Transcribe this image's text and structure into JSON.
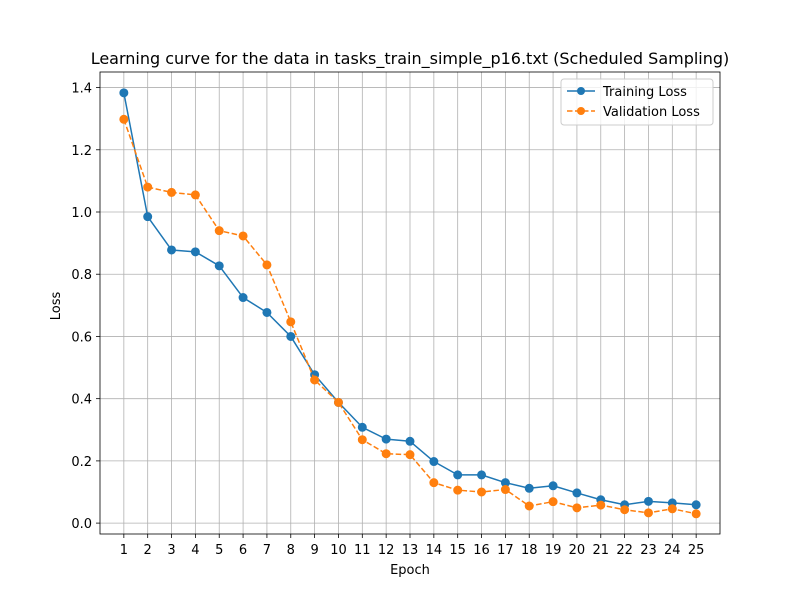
{
  "chart_data": {
    "type": "line",
    "title": "Learning curve for the data in tasks_train_simple_p16.txt (Scheduled Sampling)",
    "xlabel": "Epoch",
    "ylabel": "Loss",
    "x": [
      1,
      2,
      3,
      4,
      5,
      6,
      7,
      8,
      9,
      10,
      11,
      12,
      13,
      14,
      15,
      16,
      17,
      18,
      19,
      20,
      21,
      22,
      23,
      24,
      25
    ],
    "xlim": [
      0.0,
      26.0
    ],
    "ylim": [
      -0.035,
      1.45
    ],
    "yticks": [
      0.0,
      0.2,
      0.4,
      0.6,
      0.8,
      1.0,
      1.2,
      1.4
    ],
    "ytick_labels": [
      "0.0",
      "0.2",
      "0.4",
      "0.6",
      "0.8",
      "1.0",
      "1.2",
      "1.4"
    ],
    "grid": true,
    "legend_position": "top-right",
    "series": [
      {
        "name": "Training Loss",
        "color": "#1f77b4",
        "line_style": "solid",
        "marker": "circle",
        "values": [
          1.383,
          0.985,
          0.878,
          0.872,
          0.827,
          0.725,
          0.677,
          0.6,
          0.477,
          0.388,
          0.308,
          0.27,
          0.263,
          0.198,
          0.155,
          0.155,
          0.13,
          0.112,
          0.12,
          0.097,
          0.075,
          0.059,
          0.07,
          0.065,
          0.059
        ]
      },
      {
        "name": "Validation Loss",
        "color": "#ff7f0e",
        "line_style": "dashed",
        "marker": "circle",
        "values": [
          1.298,
          1.08,
          1.063,
          1.055,
          0.94,
          0.923,
          0.83,
          0.647,
          0.46,
          0.388,
          0.268,
          0.223,
          0.22,
          0.13,
          0.106,
          0.1,
          0.108,
          0.055,
          0.069,
          0.049,
          0.058,
          0.043,
          0.033,
          0.046,
          0.03
        ]
      }
    ]
  }
}
